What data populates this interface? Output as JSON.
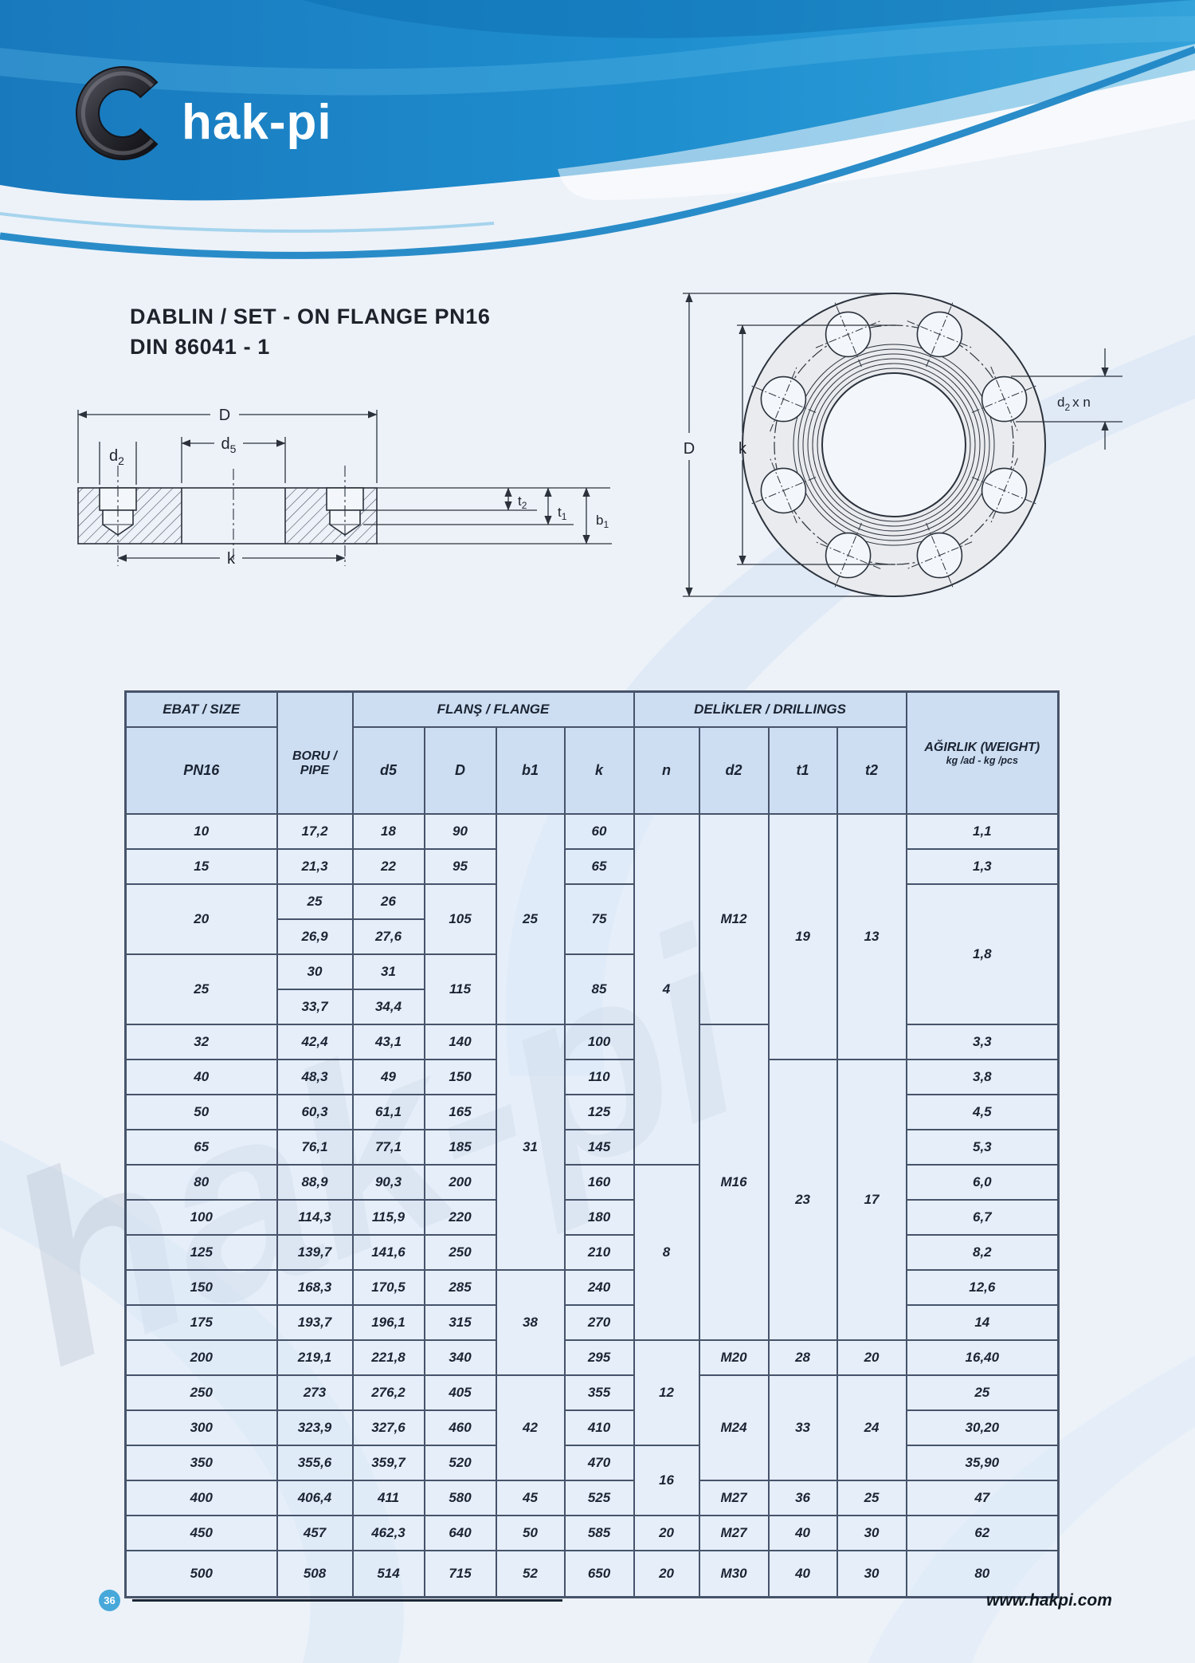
{
  "header": {
    "logo_text": "hak-pi"
  },
  "title": {
    "line1": "DABLIN / SET - ON FLANGE PN16",
    "line2": "DIN 86041 - 1"
  },
  "drawing_labels": {
    "D": "D",
    "k": "k",
    "d": "d",
    "t": "t",
    "b": "b",
    "sub1": "1",
    "sub2": "2",
    "sub5": "5",
    "xn": "x n"
  },
  "watermark": "hak-pi",
  "table": {
    "group_headers": {
      "size": "EBAT / SIZE",
      "flange": "FLANŞ / FLANGE",
      "drillings": "DELİKLER / DRILLINGS"
    },
    "col_headers": {
      "pn16": "PN16",
      "boru": "BORU / PIPE",
      "d5": "d5",
      "D": "D",
      "b1": "b1",
      "k": "k",
      "n": "n",
      "d2": "d2",
      "t1": "t1",
      "t2": "t2"
    },
    "weight_header": {
      "line1": "AĞIRLIK  (WEIGHT)",
      "line2": "kg /ad - kg /pcs"
    },
    "rows": [
      [
        {
          "v": "10"
        },
        {
          "v": "17,2"
        },
        {
          "v": "18"
        },
        {
          "v": "90"
        },
        {
          "v": "25",
          "rs": 6
        },
        {
          "v": "60"
        },
        {
          "v": "4",
          "rs": 10
        },
        {
          "v": "M12",
          "rs": 6
        },
        {
          "v": "19",
          "rs": 7
        },
        {
          "v": "13",
          "rs": 7
        },
        {
          "v": "1,1"
        }
      ],
      [
        {
          "v": "15"
        },
        {
          "v": "21,3"
        },
        {
          "v": "22"
        },
        {
          "v": "95"
        },
        {
          "v": "65"
        },
        {
          "v": "1,3"
        }
      ],
      [
        {
          "v": "20",
          "rs": 2
        },
        {
          "v": "25"
        },
        {
          "v": "26"
        },
        {
          "v": "105",
          "rs": 2
        },
        {
          "v": "75",
          "rs": 2
        },
        {
          "v": "1,8",
          "rs": 4
        }
      ],
      [
        {
          "v": "26,9"
        },
        {
          "v": "27,6"
        }
      ],
      [
        {
          "v": "25",
          "rs": 2
        },
        {
          "v": "30"
        },
        {
          "v": "31"
        },
        {
          "v": "115",
          "rs": 2
        },
        {
          "v": "85",
          "rs": 2
        }
      ],
      [
        {
          "v": "33,7"
        },
        {
          "v": "34,4"
        }
      ],
      [
        {
          "v": "32"
        },
        {
          "v": "42,4"
        },
        {
          "v": "43,1"
        },
        {
          "v": "140"
        },
        {
          "v": "31",
          "rs": 7
        },
        {
          "v": "100"
        },
        {
          "v": "M16",
          "rs": 9
        },
        {
          "v": "3,3"
        }
      ],
      [
        {
          "v": "40"
        },
        {
          "v": "48,3"
        },
        {
          "v": "49"
        },
        {
          "v": "150"
        },
        {
          "v": "110"
        },
        {
          "v": "23",
          "rs": 8
        },
        {
          "v": "17",
          "rs": 8
        },
        {
          "v": "3,8"
        }
      ],
      [
        {
          "v": "50"
        },
        {
          "v": "60,3"
        },
        {
          "v": "61,1"
        },
        {
          "v": "165"
        },
        {
          "v": "125"
        },
        {
          "v": "4,5"
        }
      ],
      [
        {
          "v": "65"
        },
        {
          "v": "76,1"
        },
        {
          "v": "77,1"
        },
        {
          "v": "185"
        },
        {
          "v": "145"
        },
        {
          "v": "5,3"
        }
      ],
      [
        {
          "v": "80"
        },
        {
          "v": "88,9"
        },
        {
          "v": "90,3"
        },
        {
          "v": "200"
        },
        {
          "v": "160"
        },
        {
          "v": "8",
          "rs": 5
        },
        {
          "v": "6,0"
        }
      ],
      [
        {
          "v": "100"
        },
        {
          "v": "114,3"
        },
        {
          "v": "115,9"
        },
        {
          "v": "220"
        },
        {
          "v": "180"
        },
        {
          "v": "6,7"
        }
      ],
      [
        {
          "v": "125"
        },
        {
          "v": "139,7"
        },
        {
          "v": "141,6"
        },
        {
          "v": "250"
        },
        {
          "v": "210"
        },
        {
          "v": "8,2"
        }
      ],
      [
        {
          "v": "150"
        },
        {
          "v": "168,3"
        },
        {
          "v": "170,5"
        },
        {
          "v": "285"
        },
        {
          "v": "38",
          "rs": 3
        },
        {
          "v": "240"
        },
        {
          "v": "12,6"
        }
      ],
      [
        {
          "v": "175"
        },
        {
          "v": "193,7"
        },
        {
          "v": "196,1"
        },
        {
          "v": "315"
        },
        {
          "v": "270"
        },
        {
          "v": "14"
        }
      ],
      [
        {
          "v": "200"
        },
        {
          "v": "219,1"
        },
        {
          "v": "221,8"
        },
        {
          "v": "340"
        },
        {
          "v": "295"
        },
        {
          "v": "12",
          "rs": 3
        },
        {
          "v": "M20"
        },
        {
          "v": "28"
        },
        {
          "v": "20"
        },
        {
          "v": "16,40"
        }
      ],
      [
        {
          "v": "250"
        },
        {
          "v": "273"
        },
        {
          "v": "276,2"
        },
        {
          "v": "405"
        },
        {
          "v": "42",
          "rs": 3
        },
        {
          "v": "355"
        },
        {
          "v": "M24",
          "rs": 3
        },
        {
          "v": "33",
          "rs": 3
        },
        {
          "v": "24",
          "rs": 3
        },
        {
          "v": "25"
        }
      ],
      [
        {
          "v": "300"
        },
        {
          "v": "323,9"
        },
        {
          "v": "327,6"
        },
        {
          "v": "460"
        },
        {
          "v": "410"
        },
        {
          "v": "30,20"
        }
      ],
      [
        {
          "v": "350"
        },
        {
          "v": "355,6"
        },
        {
          "v": "359,7"
        },
        {
          "v": "520"
        },
        {
          "v": "470"
        },
        {
          "v": "16",
          "rs": 2
        },
        {
          "v": "35,90"
        }
      ],
      [
        {
          "v": "400"
        },
        {
          "v": "406,4"
        },
        {
          "v": "411"
        },
        {
          "v": "580"
        },
        {
          "v": "45"
        },
        {
          "v": "525"
        },
        {
          "v": "M27"
        },
        {
          "v": "36"
        },
        {
          "v": "25"
        },
        {
          "v": "47"
        }
      ],
      [
        {
          "v": "450"
        },
        {
          "v": "457"
        },
        {
          "v": "462,3"
        },
        {
          "v": "640"
        },
        {
          "v": "50"
        },
        {
          "v": "585"
        },
        {
          "v": "20"
        },
        {
          "v": "M27"
        },
        {
          "v": "40"
        },
        {
          "v": "30"
        },
        {
          "v": "62"
        }
      ],
      [
        {
          "v": "500"
        },
        {
          "v": "508"
        },
        {
          "v": "514"
        },
        {
          "v": "715"
        },
        {
          "v": "52"
        },
        {
          "v": "650"
        },
        {
          "v": "20"
        },
        {
          "v": "M30"
        },
        {
          "v": "40"
        },
        {
          "v": "30"
        },
        {
          "v": "80"
        }
      ]
    ]
  },
  "footer": {
    "page_number": "36",
    "website": "www.hakpi.com"
  },
  "colors": {
    "banner_blue": "#1b84c6",
    "banner_light_streak": "#59b7e4",
    "page_background": "#edf2f9",
    "table_border": "#46536a",
    "header_fill": "#cbdcf1",
    "cell_fill": "#dfebf9",
    "text_dark": "#1b2433",
    "page_badge_blue": "#47a8da",
    "drawing_stroke": "#2b323c"
  }
}
